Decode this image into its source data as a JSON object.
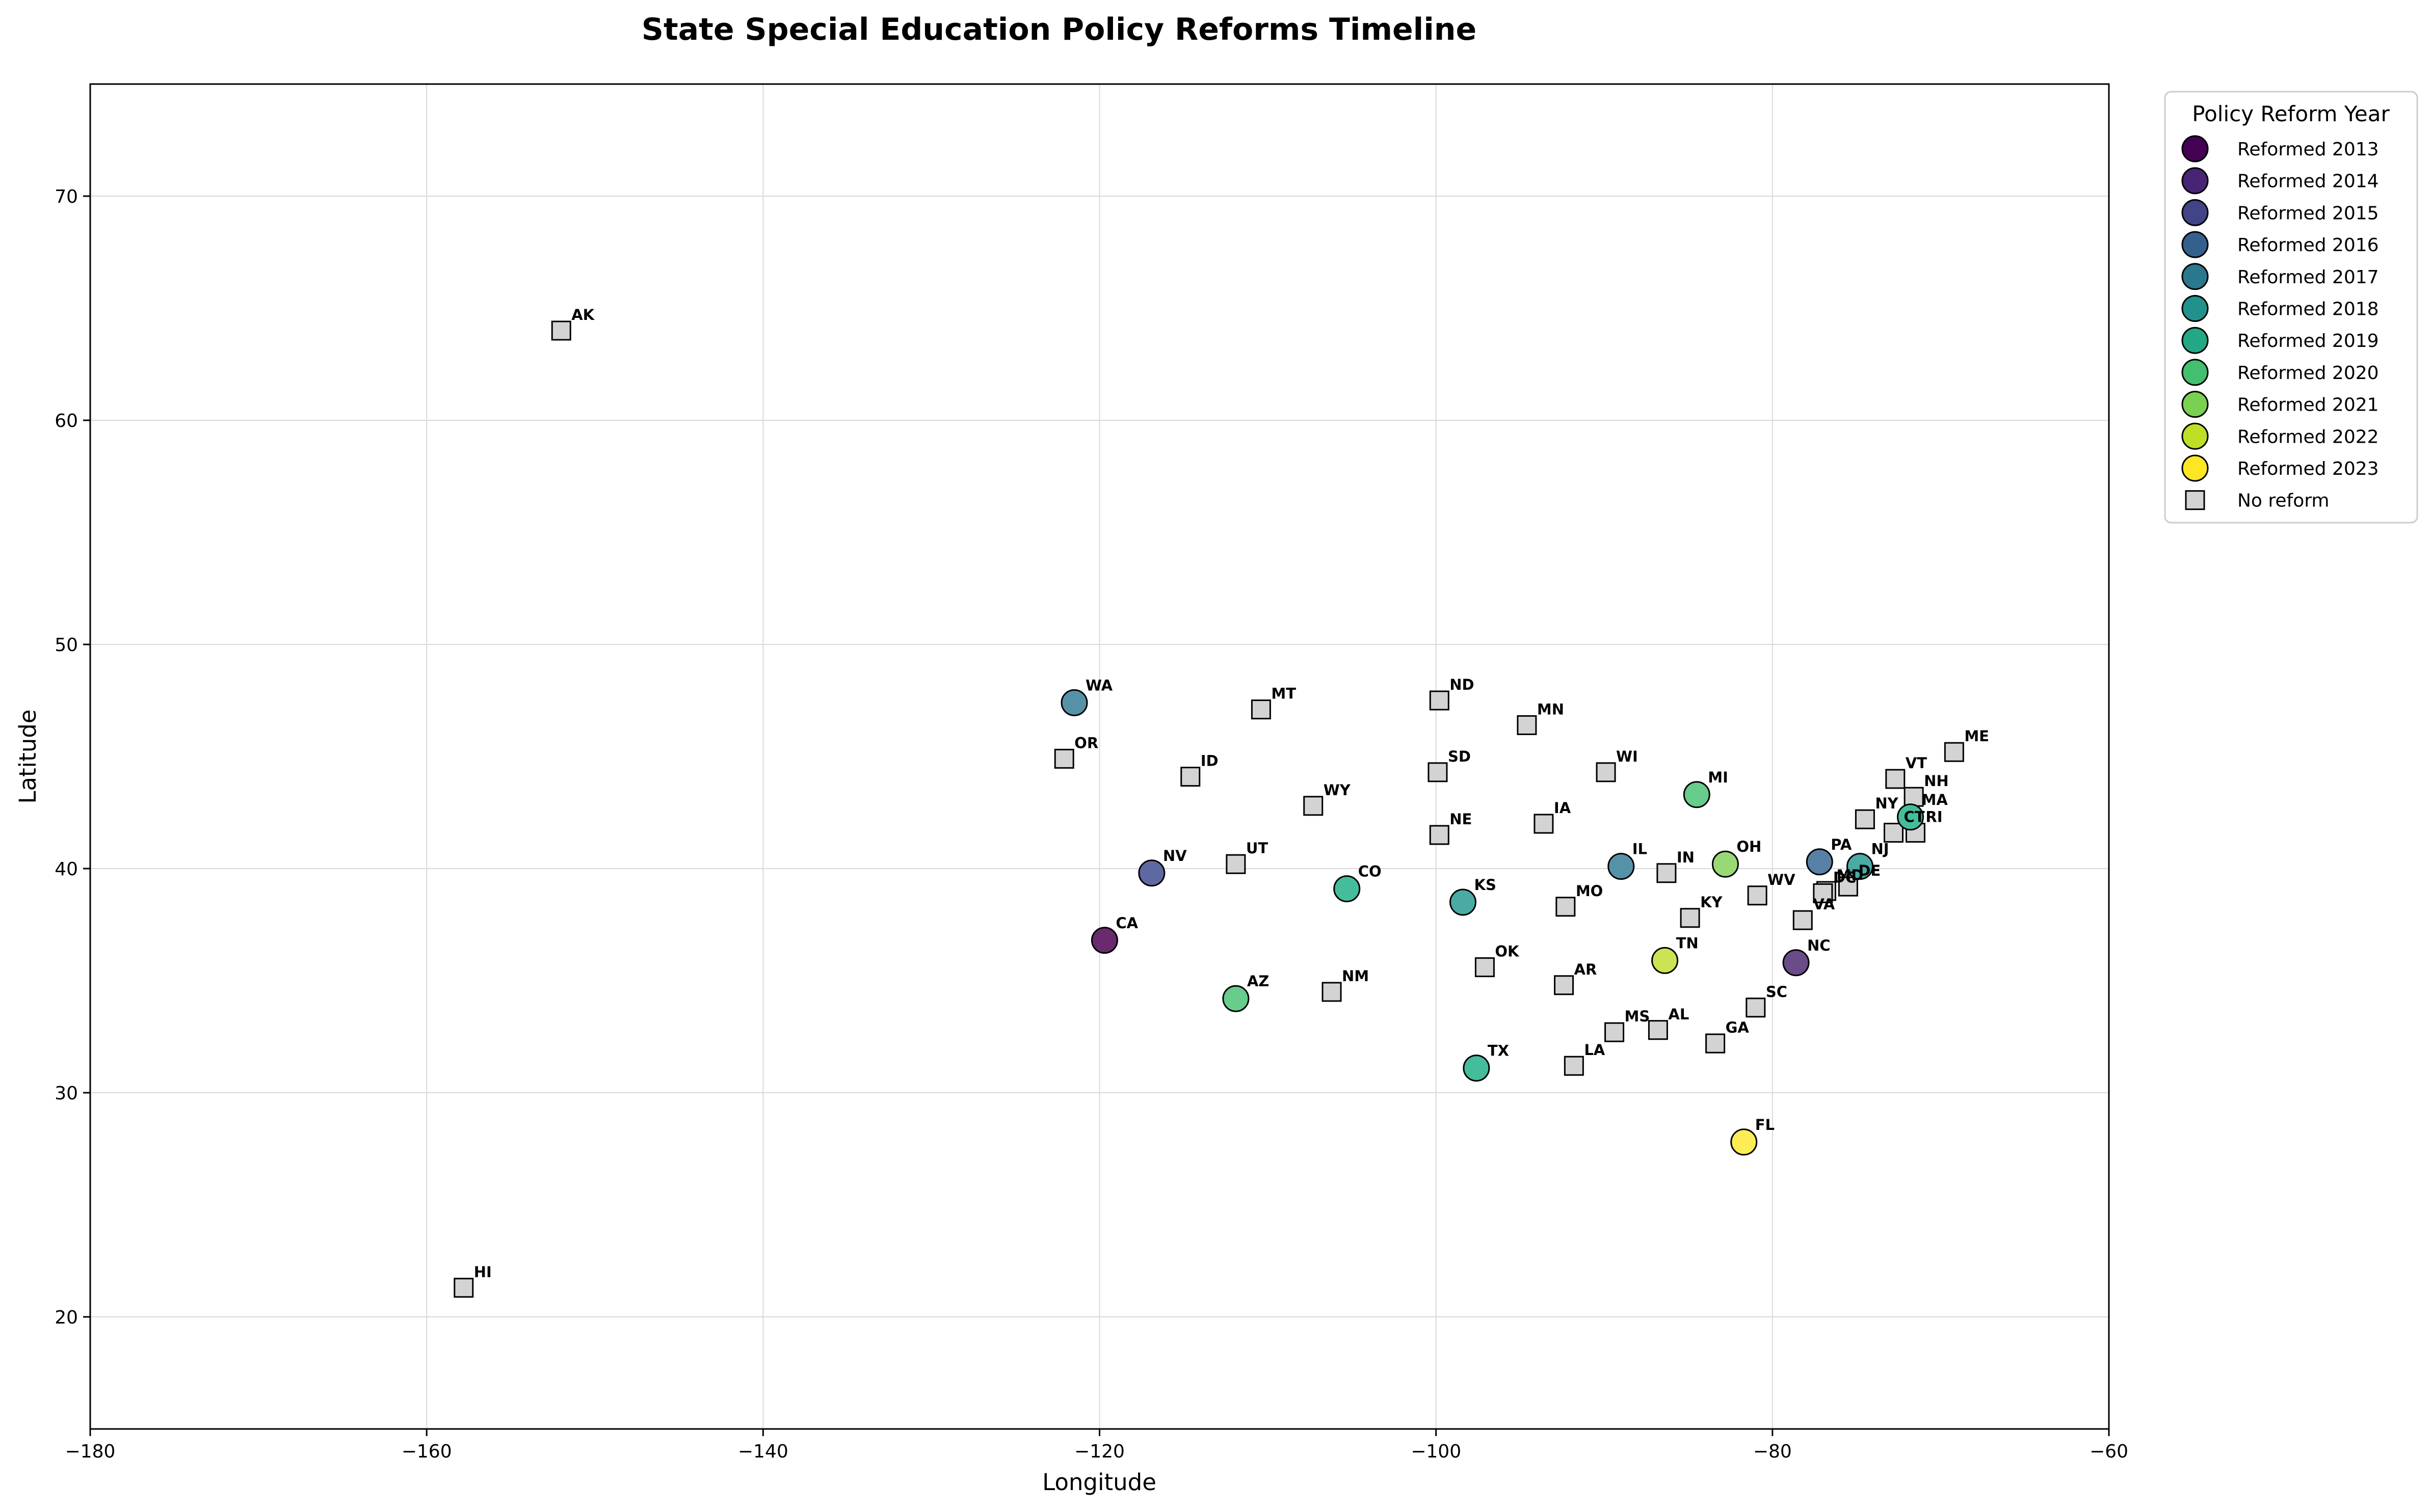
{
  "chart_data": {
    "type": "scatter",
    "title": "State Special Education Policy Reforms Timeline",
    "xlabel": "Longitude",
    "ylabel": "Latitude",
    "xlim": [
      -180,
      -60
    ],
    "ylim": [
      15,
      75
    ],
    "xticks": [
      -180,
      -160,
      -140,
      -120,
      -100,
      -80,
      -60
    ],
    "yticks": [
      20,
      30,
      40,
      50,
      60,
      70
    ],
    "grid": true,
    "legend": {
      "title": "Policy Reform Year",
      "placement": "outside-right",
      "items": [
        {
          "label": "Reformed 2013",
          "year": 2013,
          "color": "#440154",
          "marker": "circle"
        },
        {
          "label": "Reformed 2014",
          "year": 2014,
          "color": "#482475",
          "marker": "circle"
        },
        {
          "label": "Reformed 2015",
          "year": 2015,
          "color": "#414487",
          "marker": "circle"
        },
        {
          "label": "Reformed 2016",
          "year": 2016,
          "color": "#355f8d",
          "marker": "circle"
        },
        {
          "label": "Reformed 2017",
          "year": 2017,
          "color": "#2a788e",
          "marker": "circle"
        },
        {
          "label": "Reformed 2018",
          "year": 2018,
          "color": "#21918c",
          "marker": "circle"
        },
        {
          "label": "Reformed 2019",
          "year": 2019,
          "color": "#22a884",
          "marker": "circle"
        },
        {
          "label": "Reformed 2020",
          "year": 2020,
          "color": "#44bf70",
          "marker": "circle"
        },
        {
          "label": "Reformed 2021",
          "year": 2021,
          "color": "#7ad151",
          "marker": "circle"
        },
        {
          "label": "Reformed 2022",
          "year": 2022,
          "color": "#bddf26",
          "marker": "circle"
        },
        {
          "label": "Reformed 2023",
          "year": 2023,
          "color": "#fde725",
          "marker": "circle"
        },
        {
          "label": "No reform",
          "year": null,
          "color": "#d3d3d3",
          "marker": "square"
        }
      ]
    },
    "reformed_states": [
      {
        "state": "CA",
        "lon": -119.7,
        "lat": 36.8,
        "year": 2013,
        "color": "#6a2a6e"
      },
      {
        "state": "NC",
        "lon": -78.6,
        "lat": 35.8,
        "year": 2014,
        "color": "#6a4c89"
      },
      {
        "state": "NV",
        "lon": -116.9,
        "lat": 39.8,
        "year": 2015,
        "color": "#5e68a3"
      },
      {
        "state": "PA",
        "lon": -77.2,
        "lat": 40.3,
        "year": 2016,
        "color": "#587fa5"
      },
      {
        "state": "WA",
        "lon": -121.5,
        "lat": 47.4,
        "year": 2017,
        "color": "#5592a8"
      },
      {
        "state": "IL",
        "lon": -89.0,
        "lat": 40.1,
        "year": 2017,
        "color": "#5592a8"
      },
      {
        "state": "KS",
        "lon": -98.4,
        "lat": 38.5,
        "year": 2018,
        "color": "#4aaba4"
      },
      {
        "state": "NJ",
        "lon": -74.8,
        "lat": 40.1,
        "year": 2018,
        "color": "#4aaba4"
      },
      {
        "state": "TX",
        "lon": -97.6,
        "lat": 31.1,
        "year": 2019,
        "color": "#45bd9c"
      },
      {
        "state": "CO",
        "lon": -105.3,
        "lat": 39.1,
        "year": 2019,
        "color": "#45bd9c"
      },
      {
        "state": "MA",
        "lon": -71.8,
        "lat": 42.3,
        "year": 2019,
        "color": "#45bd9c"
      },
      {
        "state": "AZ",
        "lon": -111.9,
        "lat": 34.2,
        "year": 2020,
        "color": "#67cc8c"
      },
      {
        "state": "MI",
        "lon": -84.5,
        "lat": 43.3,
        "year": 2020,
        "color": "#67cc8c"
      },
      {
        "state": "OH",
        "lon": -82.8,
        "lat": 40.2,
        "year": 2021,
        "color": "#98d975"
      },
      {
        "state": "TN",
        "lon": -86.4,
        "lat": 35.9,
        "year": 2022,
        "color": "#cce454"
      },
      {
        "state": "FL",
        "lon": -81.7,
        "lat": 27.8,
        "year": 2023,
        "color": "#fded55"
      }
    ],
    "no_reform_states": [
      {
        "state": "AK",
        "lon": -152.0,
        "lat": 64.0
      },
      {
        "state": "HI",
        "lon": -157.8,
        "lat": 21.3
      },
      {
        "state": "OR",
        "lon": -122.1,
        "lat": 44.9
      },
      {
        "state": "ID",
        "lon": -114.6,
        "lat": 44.1
      },
      {
        "state": "MT",
        "lon": -110.4,
        "lat": 47.1
      },
      {
        "state": "WY",
        "lon": -107.3,
        "lat": 42.8
      },
      {
        "state": "UT",
        "lon": -111.9,
        "lat": 40.2
      },
      {
        "state": "NM",
        "lon": -106.2,
        "lat": 34.5
      },
      {
        "state": "ND",
        "lon": -99.8,
        "lat": 47.5
      },
      {
        "state": "SD",
        "lon": -99.9,
        "lat": 44.3
      },
      {
        "state": "NE",
        "lon": -99.8,
        "lat": 41.5
      },
      {
        "state": "OK",
        "lon": -97.1,
        "lat": 35.6
      },
      {
        "state": "MN",
        "lon": -94.6,
        "lat": 46.4
      },
      {
        "state": "IA",
        "lon": -93.6,
        "lat": 42.0
      },
      {
        "state": "MO",
        "lon": -92.3,
        "lat": 38.3
      },
      {
        "state": "AR",
        "lon": -92.4,
        "lat": 34.8
      },
      {
        "state": "LA",
        "lon": -91.8,
        "lat": 31.2
      },
      {
        "state": "MS",
        "lon": -89.4,
        "lat": 32.7
      },
      {
        "state": "AL",
        "lon": -86.8,
        "lat": 32.8
      },
      {
        "state": "WI",
        "lon": -89.9,
        "lat": 44.3
      },
      {
        "state": "IN",
        "lon": -86.3,
        "lat": 39.8
      },
      {
        "state": "KY",
        "lon": -84.9,
        "lat": 37.8
      },
      {
        "state": "GA",
        "lon": -83.4,
        "lat": 32.2
      },
      {
        "state": "SC",
        "lon": -81.0,
        "lat": 33.8
      },
      {
        "state": "WV",
        "lon": -80.9,
        "lat": 38.8
      },
      {
        "state": "VA",
        "lon": -78.2,
        "lat": 37.7
      },
      {
        "state": "MD",
        "lon": -76.8,
        "lat": 39.0
      },
      {
        "state": "DC",
        "lon": -77.0,
        "lat": 38.9
      },
      {
        "state": "DE",
        "lon": -75.5,
        "lat": 39.2
      },
      {
        "state": "NY",
        "lon": -74.5,
        "lat": 42.2
      },
      {
        "state": "CT",
        "lon": -72.8,
        "lat": 41.6
      },
      {
        "state": "RI",
        "lon": -71.5,
        "lat": 41.6
      },
      {
        "state": "VT",
        "lon": -72.7,
        "lat": 44.0
      },
      {
        "state": "NH",
        "lon": -71.6,
        "lat": 43.2
      },
      {
        "state": "ME",
        "lon": -69.2,
        "lat": 45.2
      }
    ]
  }
}
